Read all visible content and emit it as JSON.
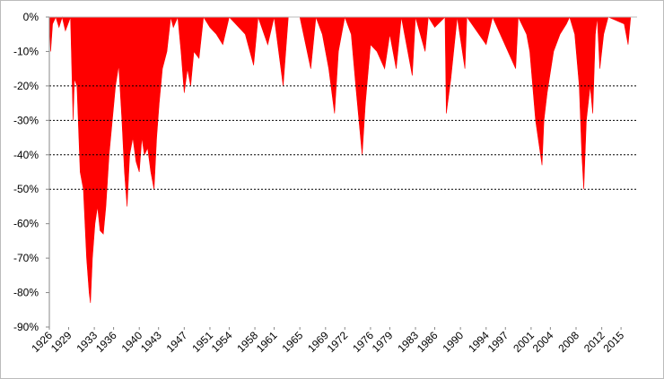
{
  "chart_data": {
    "type": "area",
    "color": "#ff0000",
    "x": [
      1926.0,
      1926.2,
      1926.5,
      1927,
      1927.5,
      1928,
      1928.5,
      1929.3,
      1929.7,
      1929.9,
      1930.3,
      1930.8,
      1931.3,
      1931.8,
      1932.2,
      1932.4,
      1932.7,
      1933.1,
      1933.5,
      1933.9,
      1934.4,
      1934.8,
      1935.3,
      1935.8,
      1936.3,
      1936.8,
      1937.3,
      1937.7,
      1938.1,
      1938.5,
      1939,
      1939.5,
      1940,
      1940.4,
      1940.8,
      1941.3,
      1941.8,
      1942.3,
      1942.7,
      1943.1,
      1943.6,
      1944.3,
      1944.9,
      1945.3,
      1946,
      1946.5,
      1947,
      1947.5,
      1948,
      1948.5,
      1949.3,
      1950,
      1951,
      1952,
      1953,
      1954,
      1956.5,
      1957.8,
      1958.5,
      1960,
      1961,
      1962.4,
      1963.2,
      1965,
      1966.7,
      1967.5,
      1968.5,
      1969.5,
      1970.4,
      1971,
      1972,
      1973,
      1973.8,
      1974.7,
      1975.2,
      1976,
      1977,
      1978.2,
      1979,
      1980,
      1980.8,
      1982.5,
      1983,
      1984.5,
      1985,
      1986,
      1987.6,
      1987.8,
      1988.5,
      1989.5,
      1990.7,
      1991,
      1994,
      1995,
      1998.6,
      1999,
      2000.3,
      2000.8,
      2001.7,
      2002.7,
      2003,
      2003.5,
      2004.5,
      2005.5,
      2006.5,
      2007,
      2007.8,
      2008.5,
      2008.9,
      2009.2,
      2009.6,
      2010.2,
      2010.6,
      2011,
      2011.3,
      2011.7,
      2012.3,
      2013,
      2015.5,
      2016.1,
      2016.5,
      2017.5
    ],
    "values": [
      0,
      -10,
      -2,
      0,
      -3,
      0,
      -4,
      0,
      -30,
      -18,
      -20,
      -45,
      -50,
      -70,
      -80,
      -83,
      -70,
      -60,
      -55,
      -62,
      -63,
      -55,
      -40,
      -30,
      -20,
      -14,
      -30,
      -45,
      -55,
      -40,
      -35,
      -42,
      -45,
      -35,
      -40,
      -38,
      -45,
      -50,
      -35,
      -25,
      -15,
      -10,
      0,
      -3,
      0,
      -10,
      -22,
      -15,
      -20,
      -10,
      -12,
      0,
      -3,
      -5,
      -8,
      0,
      -5,
      -14,
      0,
      -8,
      0,
      -20,
      0,
      0,
      -15,
      0,
      -5,
      -15,
      -28,
      -10,
      0,
      -5,
      -22,
      -40,
      -25,
      -8,
      -10,
      -15,
      -5,
      -15,
      0,
      -17,
      0,
      -10,
      0,
      -3,
      0,
      -28,
      -18,
      0,
      -15,
      0,
      -8,
      0,
      -15,
      0,
      -5,
      -10,
      -30,
      -43,
      -30,
      -22,
      -10,
      -5,
      -2,
      0,
      -5,
      -20,
      -40,
      -50,
      -30,
      -20,
      -28,
      -5,
      0,
      -15,
      -5,
      0,
      -2,
      -8,
      0,
      0
    ],
    "xlim": [
      1926,
      2017.5
    ],
    "xticks": [
      1926,
      1929,
      1933,
      1936,
      1940,
      1943,
      1947,
      1951,
      1954,
      1958,
      1961,
      1965,
      1969,
      1972,
      1976,
      1979,
      1983,
      1986,
      1990,
      1994,
      1997,
      2001,
      2004,
      2008,
      2012,
      2015
    ],
    "ylim": [
      -90,
      0
    ],
    "yticks": [
      {
        "value": 0,
        "label": "0%"
      },
      {
        "value": -10,
        "label": "-10%"
      },
      {
        "value": -20,
        "label": "-20%"
      },
      {
        "value": -30,
        "label": "-30%"
      },
      {
        "value": -40,
        "label": "-40%"
      },
      {
        "value": -50,
        "label": "-50%"
      },
      {
        "value": -60,
        "label": "-60%"
      },
      {
        "value": -70,
        "label": "-70%"
      },
      {
        "value": -80,
        "label": "-80%"
      },
      {
        "value": -90,
        "label": "-90%"
      }
    ],
    "grid_lines": [
      -20,
      -30,
      -40,
      -50
    ]
  }
}
